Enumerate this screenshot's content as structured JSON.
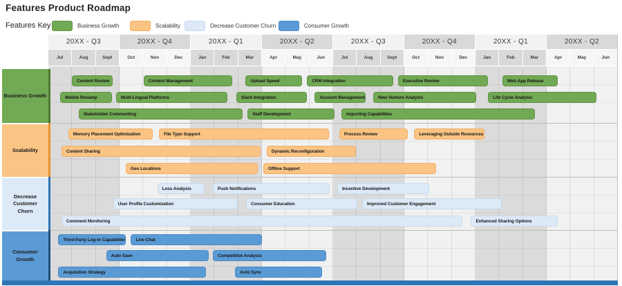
{
  "title": "Features Product Roadmap",
  "legend": {
    "label": "Features Key"
  },
  "chart_data": {
    "type": "gantt",
    "title": "Features Product Roadmap",
    "x_axis": {
      "quarters": [
        "20XX - Q3",
        "20XX - Q4",
        "20XX - Q1",
        "20XX - Q2",
        "20XX - Q3",
        "20XX - Q4",
        "20XX - Q1",
        "20XX - Q2"
      ],
      "months": [
        "Jul",
        "Aug",
        "Sept",
        "Oct",
        "Nov",
        "Dec",
        "Jan",
        "Feb",
        "Mar",
        "Apr",
        "May",
        "Jun",
        "Jul",
        "Aug",
        "Sept",
        "Oct",
        "Nov",
        "Dec",
        "Jan",
        "Feb",
        "Mar",
        "Apr",
        "May",
        "Jun"
      ],
      "unit": "months (0 = first Jul, 24 = last Jun)",
      "shaded_quarter_indices": [
        0,
        2,
        4,
        6
      ],
      "header_light": "#F2F2F2",
      "header_grey": "#D9D9D9",
      "month_grey": "#D9D9D9",
      "month_light": "#F6F6F6",
      "body_grey": "#DBDBDB",
      "body_light": "#F1F1F1"
    },
    "bottom_border_color": "#2E75B6",
    "lanes": [
      {
        "name": "Business Growth",
        "fill": "#72A954",
        "border": "#5F9343",
        "accent": "#4C7A2E",
        "bars": [
          {
            "label": "Content Review",
            "row": 0,
            "start": 0.96,
            "end": 2.74
          },
          {
            "label": "Content Management",
            "row": 0,
            "start": 3.98,
            "end": 7.77
          },
          {
            "label": "Upload Speed",
            "row": 0,
            "start": 8.28,
            "end": 10.73
          },
          {
            "label": "CRM Integration",
            "row": 0,
            "start": 10.87,
            "end": 14.56
          },
          {
            "label": "Executive Review",
            "row": 0,
            "start": 14.7,
            "end": 18.55
          },
          {
            "label": "Web App Release",
            "row": 0,
            "start": 19.1,
            "end": 21.5
          },
          {
            "label": "Mobile Revamp",
            "row": 1,
            "start": 0.47,
            "end": 2.7
          },
          {
            "label": "Multi-Lingual Platforms",
            "row": 1,
            "start": 2.82,
            "end": 7.57
          },
          {
            "label": "Slack Integration",
            "row": 1,
            "start": 7.89,
            "end": 10.92
          },
          {
            "label": "Account Management",
            "row": 1,
            "start": 11.19,
            "end": 13.4
          },
          {
            "label": "New Venture Analysis",
            "row": 1,
            "start": 13.66,
            "end": 18.05
          },
          {
            "label": "Life Cycle Analysis",
            "row": 1,
            "start": 18.5,
            "end": 23.14
          },
          {
            "label": "Stakeholder Commenting",
            "row": 2,
            "start": 1.24,
            "end": 8.2
          },
          {
            "label": "Staff Development",
            "row": 2,
            "start": 8.37,
            "end": 12.09
          },
          {
            "label": "Importing Capabilities",
            "row": 2,
            "start": 12.32,
            "end": 20.53
          }
        ]
      },
      {
        "name": "Scalability",
        "fill": "#FAC484",
        "border": "#F2AE62",
        "accent": "#E8912D",
        "bars": [
          {
            "label": "Memory Placement Optimization",
            "row": 0,
            "start": 0.81,
            "end": 4.42
          },
          {
            "label": "File Type Support",
            "row": 0,
            "start": 4.63,
            "end": 11.86
          },
          {
            "label": "Process Review",
            "row": 0,
            "start": 12.23,
            "end": 15.18
          },
          {
            "label": "Leveraging Outside Resources",
            "row": 0,
            "start": 15.39,
            "end": 18.41
          },
          {
            "label": "Content Sharing",
            "row": 1,
            "start": 0.52,
            "end": 8.96
          },
          {
            "label": "Dynamic Reconfiguration",
            "row": 1,
            "start": 9.17,
            "end": 12.99
          },
          {
            "label": "Geo Locations",
            "row": 2,
            "start": 3.23,
            "end": 8.84
          },
          {
            "label": "Offline Support",
            "row": 2,
            "start": 9.03,
            "end": 16.36
          }
        ]
      },
      {
        "name": "Decrease Customer Churn",
        "fill": "#DCE9F6",
        "border": "#C7DAEC",
        "accent": "#2E75B6",
        "bars": [
          {
            "label": "Loss Analysis",
            "row": 0,
            "start": 4.56,
            "end": 6.6
          },
          {
            "label": "Push Notifications",
            "row": 0,
            "start": 6.9,
            "end": 11.89
          },
          {
            "label": "Incentive Development",
            "row": 0,
            "start": 12.15,
            "end": 16.08
          },
          {
            "label": "User Profile Customization",
            "row": 1,
            "start": 2.7,
            "end": 8.01
          },
          {
            "label": "Consumer Education",
            "row": 1,
            "start": 8.3,
            "end": 13.06
          },
          {
            "label": "Improved Customer Engagement",
            "row": 1,
            "start": 13.19,
            "end": 19.13
          },
          {
            "label": "Comment Monitoring",
            "row": 2,
            "start": 0.52,
            "end": 17.48
          },
          {
            "label": "Enhanced Sharing Options",
            "row": 2,
            "start": 17.78,
            "end": 21.5
          }
        ]
      },
      {
        "name": "Consumer Growth",
        "fill": "#5B9BD5",
        "border": "#4B8BC4",
        "accent": "#1F4E79",
        "bars": [
          {
            "label": "Third-Party Log-in Capabilities",
            "row": 0,
            "start": 0.39,
            "end": 3.3
          },
          {
            "label": "Live Chat",
            "row": 0,
            "start": 3.45,
            "end": 9.03
          },
          {
            "label": "Auto Save",
            "row": 1,
            "start": 2.41,
            "end": 6.8
          },
          {
            "label": "Competitive Analysis",
            "row": 1,
            "start": 6.91,
            "end": 11.75
          },
          {
            "label": "Acquisition Strategy",
            "row": 2,
            "start": 0.39,
            "end": 6.68
          },
          {
            "label": "Auto Sync",
            "row": 2,
            "start": 7.84,
            "end": 11.56
          }
        ]
      }
    ]
  }
}
